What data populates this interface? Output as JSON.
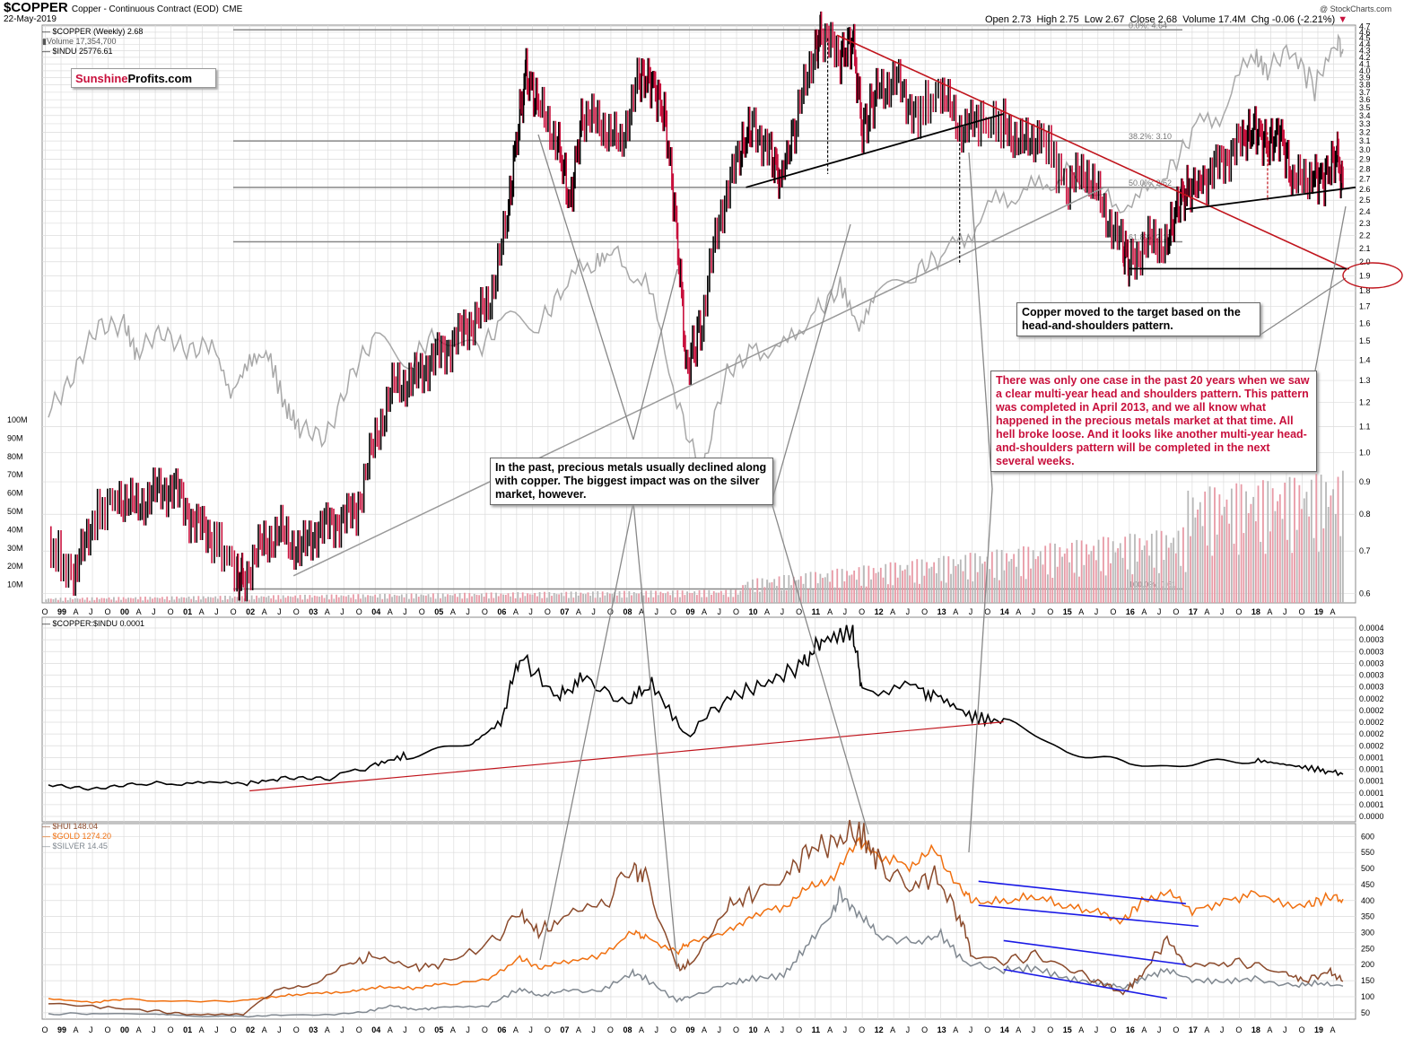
{
  "header": {
    "symbol": "$COPPER",
    "description": "Copper - Continuous Contract (EOD)",
    "exchange": "CME",
    "date": "22-May-2019",
    "open": "Open 2.73",
    "high": "High 2.75",
    "low": "Low 2.67",
    "close": "Close 2.68",
    "volume": "Volume 17.4M",
    "change": "Chg -0.06 (-2.21%)",
    "watermark": "@ StockCharts.com"
  },
  "legend": {
    "copper": "$COPPER (Weekly) 2.68",
    "volume": "Volume 17,354,700",
    "indu": "$INDU 25776.61",
    "ratio": "$COPPER:$INDU 0.0001",
    "hui": "$HUI 148.04",
    "gold": "$GOLD 1274.20",
    "silver": "$SILVER 14.45"
  },
  "logo": {
    "part1": "Sunshine",
    "part2": "Profits.com"
  },
  "fib_labels": [
    "0.0%: 4.64",
    "38.2%: 3.10",
    "50.0%: 2.62",
    "61.8%: 2.15",
    "100.0%: 0.61"
  ],
  "notes": {
    "hs_target": "Copper moved to the target based on the head-and-shoulders pattern.",
    "past_decline": "In the past, precious metals usually declined along with copper. The biggest impact was on the silver market, however.",
    "one_case": "There was only one case in the past 20 years when we saw a clear multi-year head and shoulders pattern. This pattern was completed in April 2013, and we all know what happened in the precious metals market at that time. All hell broke loose. And it looks like another multi-year head-and-shoulders pattern will be completed in the next several weeks."
  },
  "colors": {
    "copper": "#000000",
    "copper_down": "#c8103c",
    "indu": "#a8a8a8",
    "hui": "#8b4a2b",
    "gold": "#f07010",
    "silver": "#808890",
    "trend_red": "#c0141c",
    "channel_blue": "#1a1ae6",
    "grid": "#dcdcdc"
  },
  "chart_data": [
    {
      "type": "line",
      "title": "$COPPER Copper - Continuous Contract (EOD) CME",
      "scale": "log",
      "x_tick_labels": [
        "O",
        "99",
        "A",
        "J",
        "O",
        "00",
        "A",
        "J",
        "O",
        "01",
        "A",
        "J",
        "O",
        "02",
        "A",
        "J",
        "O",
        "03",
        "A",
        "J",
        "O",
        "04",
        "A",
        "J",
        "O",
        "05",
        "A",
        "J",
        "O",
        "06",
        "A",
        "J",
        "O",
        "07",
        "A",
        "J",
        "O",
        "08",
        "A",
        "J",
        "O",
        "09",
        "A",
        "J",
        "O",
        "10",
        "A",
        "J",
        "O",
        "11",
        "A",
        "J",
        "O",
        "12",
        "A",
        "J",
        "O",
        "13",
        "A",
        "J",
        "O",
        "14",
        "A",
        "J",
        "O",
        "15",
        "A",
        "J",
        "O",
        "16",
        "A",
        "J",
        "O",
        "17",
        "A",
        "J",
        "O",
        "18",
        "A",
        "J",
        "O",
        "19",
        "A"
      ],
      "y_ticks": [
        4.7,
        4.6,
        4.5,
        4.4,
        4.3,
        4.2,
        4.1,
        4.0,
        3.9,
        3.8,
        3.7,
        3.6,
        3.5,
        3.4,
        3.3,
        3.2,
        3.1,
        3.0,
        2.9,
        2.8,
        2.7,
        2.6,
        2.5,
        2.4,
        2.3,
        2.2,
        2.1,
        2.0,
        1.9,
        1.8,
        1.7,
        1.6,
        1.5,
        1.4,
        1.3,
        1.2,
        1.1,
        1.0,
        0.9,
        0.8,
        0.7,
        0.6
      ],
      "ylim": [
        0.58,
        4.72
      ],
      "volume_ticks": [
        "100M",
        "90M",
        "80M",
        "70M",
        "60M",
        "50M",
        "40M",
        "30M",
        "20M",
        "10M"
      ],
      "fib_levels": [
        4.64,
        3.1,
        2.62,
        2.15,
        0.61
      ],
      "series": [
        {
          "name": "$COPPER (Weekly)",
          "t": [
            1998.8,
            1999.2,
            1999.5,
            1999.9,
            2000.2,
            2000.5,
            2000.8,
            2001.1,
            2001.4,
            2001.8,
            2001.9,
            2002.2,
            2002.5,
            2002.8,
            2003.1,
            2003.4,
            2003.7,
            2004.0,
            2004.3,
            2004.6,
            2004.9,
            2005.2,
            2005.5,
            2005.8,
            2006.1,
            2006.3,
            2006.4,
            2006.6,
            2006.9,
            2007.1,
            2007.3,
            2007.6,
            2007.9,
            2008.2,
            2008.4,
            2008.6,
            2008.8,
            2008.95,
            2009.2,
            2009.5,
            2009.8,
            2010.0,
            2010.3,
            2010.45,
            2010.7,
            2011.0,
            2011.1,
            2011.4,
            2011.6,
            2011.75,
            2012.0,
            2012.3,
            2012.6,
            2013.0,
            2013.3,
            2013.6,
            2014.0,
            2014.3,
            2014.6,
            2015.0,
            2015.3,
            2015.6,
            2015.9,
            2016.0,
            2016.3,
            2016.6,
            2016.8,
            2016.95,
            2017.2,
            2017.5,
            2017.8,
            2018.0,
            2018.2,
            2018.4,
            2018.6,
            2018.9,
            2019.1,
            2019.3,
            2019.4
          ],
          "values": [
            0.72,
            0.63,
            0.78,
            0.86,
            0.82,
            0.87,
            0.88,
            0.78,
            0.74,
            0.65,
            0.63,
            0.72,
            0.75,
            0.7,
            0.76,
            0.78,
            0.81,
            1.05,
            1.28,
            1.3,
            1.4,
            1.48,
            1.6,
            1.7,
            2.3,
            3.4,
            3.95,
            3.5,
            3.1,
            2.45,
            3.4,
            3.3,
            3.05,
            3.9,
            3.85,
            3.4,
            2.2,
            1.35,
            1.6,
            2.4,
            2.95,
            3.3,
            2.95,
            2.7,
            3.3,
            4.4,
            4.55,
            4.2,
            4.45,
            3.2,
            3.75,
            3.85,
            3.4,
            3.7,
            3.25,
            3.3,
            3.3,
            3.05,
            3.2,
            2.6,
            2.8,
            2.4,
            2.1,
            2.0,
            2.15,
            2.15,
            2.5,
            2.6,
            2.7,
            2.9,
            3.1,
            3.25,
            3.05,
            3.2,
            2.65,
            2.75,
            2.7,
            2.95,
            2.68
          ]
        },
        {
          "name": "$INDU",
          "t": [
            1998.8,
            1999.2,
            1999.6,
            2000.0,
            2000.2,
            2000.6,
            2001.0,
            2001.4,
            2001.7,
            2002.0,
            2002.3,
            2002.6,
            2002.8,
            2003.2,
            2003.6,
            2004.0,
            2004.6,
            2005.0,
            2005.6,
            2006.0,
            2006.6,
            2007.0,
            2007.5,
            2007.8,
            2008.3,
            2008.8,
            2009.2,
            2009.6,
            2010.0,
            2010.5,
            2011.0,
            2011.4,
            2011.7,
            2012.0,
            2012.6,
            2013.0,
            2013.5,
            2014.0,
            2014.5,
            2015.0,
            2015.6,
            2016.1,
            2016.6,
            2017.0,
            2017.5,
            2018.0,
            2018.2,
            2018.6,
            2018.95,
            2019.3,
            2019.4
          ],
          "values": [
            8800,
            9500,
            11000,
            11400,
            10300,
            10700,
            10500,
            10600,
            9000,
            10000,
            10200,
            8500,
            8000,
            8000,
            9500,
            10500,
            10200,
            10700,
            10500,
            11000,
            11400,
            12500,
            13500,
            13900,
            12600,
            9000,
            7000,
            9500,
            10500,
            10300,
            11800,
            12600,
            11000,
            12400,
            13000,
            13500,
            15000,
            16500,
            16800,
            17800,
            16500,
            16000,
            18000,
            20000,
            21500,
            25500,
            24000,
            25500,
            23000,
            26400,
            25800
          ]
        },
        {
          "name": "$COPPER:$INDU",
          "t": [
            1998.8,
            1999.5,
            2000.2,
            2001.0,
            2001.9,
            2002.5,
            2003.2,
            2004.0,
            2004.5,
            2005.5,
            2006.0,
            2006.3,
            2006.9,
            2007.3,
            2008.0,
            2008.4,
            2008.95,
            2009.6,
            2010.2,
            2010.8,
            2011.1,
            2011.6,
            2011.75,
            2012.6,
            2013.0,
            2013.5,
            2014.0,
            2015.0,
            2016.0,
            2017.0,
            2018.0,
            2018.5,
            2019.0,
            2019.4
          ],
          "values": [
            8e-05,
            7e-05,
            8e-05,
            8e-05,
            8e-05,
            9e-05,
            9e-05,
            0.00012,
            0.00014,
            0.00016,
            0.00021,
            0.00035,
            0.00026,
            0.0003,
            0.00025,
            0.00029,
            0.00018,
            0.00026,
            0.00029,
            0.00033,
            0.00038,
            0.0004,
            0.00028,
            0.00028,
            0.00026,
            0.00022,
            0.00021,
            0.00015,
            0.00012,
            0.00012,
            0.00013,
            0.00012,
            0.00011,
            0.0001
          ]
        },
        {
          "name": "$HUI",
          "t": [
            1998.8,
            1999.5,
            2000.5,
            2001.0,
            2001.9,
            2002.4,
            2003.0,
            2003.6,
            2004.0,
            2004.6,
            2005.0,
            2005.8,
            2006.3,
            2006.6,
            2007.0,
            2007.6,
            2008.1,
            2008.3,
            2008.8,
            2009.0,
            2009.6,
            2010.0,
            2010.5,
            2010.9,
            2011.3,
            2011.7,
            2012.0,
            2012.5,
            2012.9,
            2013.3,
            2013.5,
            2014.0,
            2014.5,
            2015.0,
            2015.5,
            2015.9,
            2016.2,
            2016.6,
            2016.9,
            2017.5,
            2018.0,
            2018.5,
            2018.8,
            2019.2,
            2019.4
          ],
          "values": [
            80,
            70,
            55,
            45,
            45,
            120,
            130,
            200,
            230,
            190,
            200,
            260,
            360,
            300,
            340,
            380,
            510,
            470,
            190,
            200,
            380,
            420,
            470,
            560,
            580,
            620,
            520,
            440,
            480,
            350,
            230,
            210,
            230,
            190,
            150,
            110,
            170,
            280,
            200,
            210,
            200,
            170,
            150,
            180,
            148
          ]
        },
        {
          "name": "$GOLD",
          "t": [
            1998.8,
            1999.5,
            2000.0,
            2001.0,
            2001.9,
            2002.5,
            2003.0,
            2003.6,
            2004.0,
            2004.6,
            2005.0,
            2005.8,
            2006.3,
            2006.6,
            2007.0,
            2007.6,
            2008.1,
            2008.3,
            2008.8,
            2009.0,
            2009.6,
            2010.0,
            2010.5,
            2010.9,
            2011.3,
            2011.7,
            2012.0,
            2012.5,
            2012.9,
            2013.3,
            2013.5,
            2014.0,
            2014.5,
            2015.0,
            2015.5,
            2015.9,
            2016.2,
            2016.6,
            2017.0,
            2017.5,
            2018.0,
            2018.6,
            2018.9,
            2019.2,
            2019.4
          ],
          "values": [
            295,
            260,
            290,
            265,
            280,
            320,
            350,
            360,
            410,
            400,
            430,
            480,
            700,
            600,
            650,
            720,
            950,
            900,
            750,
            850,
            950,
            1120,
            1200,
            1380,
            1500,
            1850,
            1700,
            1600,
            1750,
            1400,
            1250,
            1250,
            1300,
            1200,
            1150,
            1060,
            1250,
            1350,
            1150,
            1250,
            1330,
            1200,
            1230,
            1300,
            1274
          ]
        },
        {
          "name": "$SILVER",
          "t": [
            1998.8,
            1999.5,
            2000.5,
            2001.0,
            2001.9,
            2002.5,
            2003.2,
            2003.8,
            2004.3,
            2004.6,
            2005.0,
            2005.8,
            2006.3,
            2006.6,
            2007.0,
            2007.6,
            2008.1,
            2008.3,
            2008.8,
            2009.0,
            2009.6,
            2010.0,
            2010.5,
            2010.9,
            2011.3,
            2011.4,
            2011.7,
            2012.0,
            2012.6,
            2013.0,
            2013.4,
            2014.0,
            2014.5,
            2015.0,
            2015.5,
            2015.9,
            2016.2,
            2016.6,
            2017.0,
            2017.5,
            2018.0,
            2018.6,
            2019.0,
            2019.4
          ],
          "values": [
            5.0,
            5.2,
            5.0,
            4.5,
            4.2,
            4.6,
            4.8,
            5.5,
            8.0,
            6.5,
            7.0,
            8.0,
            13.5,
            11.0,
            13.0,
            13.0,
            19.0,
            17.0,
            9.5,
            11.0,
            15.0,
            17.0,
            18.0,
            29.0,
            40.0,
            47.0,
            38.0,
            32.0,
            29.0,
            32.0,
            22.0,
            20.0,
            20.5,
            17.0,
            15.5,
            14.0,
            17.0,
            20.0,
            16.5,
            16.0,
            17.0,
            14.5,
            15.5,
            14.45
          ]
        }
      ]
    },
    {
      "type": "line",
      "title": "$COPPER:$INDU",
      "y_ticks": [
        "0.0004",
        "0.0003",
        "0.0003",
        "0.0003",
        "0.0003",
        "0.0003",
        "0.0002",
        "0.0002",
        "0.0002",
        "0.0002",
        "0.0002",
        "0.0001",
        "0.0001",
        "0.0001",
        "0.0001",
        "0.0001",
        "0.0000"
      ],
      "ylim": [
        0.0,
        0.00043
      ]
    },
    {
      "type": "line",
      "title": "$HUI / $GOLD / $SILVER",
      "y_ticks": [
        600,
        550,
        500,
        450,
        400,
        350,
        300,
        250,
        200,
        150,
        100,
        50
      ],
      "ylim": [
        30,
        640
      ]
    }
  ]
}
